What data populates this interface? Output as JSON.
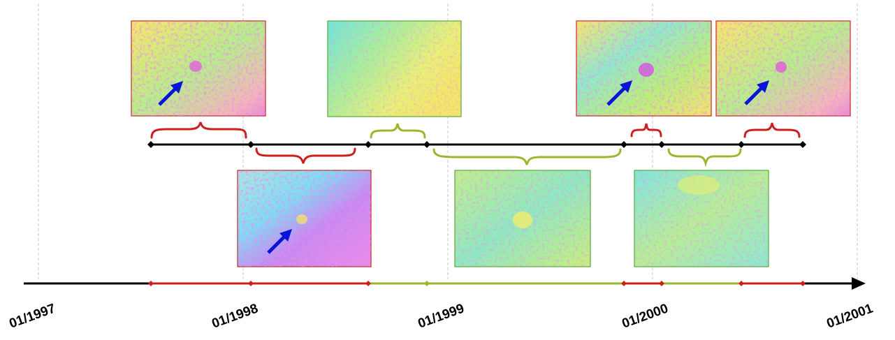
{
  "timeline": {
    "tick_labels": [
      "01/1997",
      "01/1998",
      "01/1999",
      "01/2000",
      "01/2001"
    ]
  },
  "colors": {
    "red": "#cc1f1f",
    "green": "#9ab82e",
    "axis": "#000000",
    "arrow": "#0a14d8",
    "gridline": "#c8c8c8"
  },
  "icons": [
    "arrow-right-icon",
    "diamond-marker-icon",
    "blue-arrow-icon",
    "brace-icon"
  ]
}
